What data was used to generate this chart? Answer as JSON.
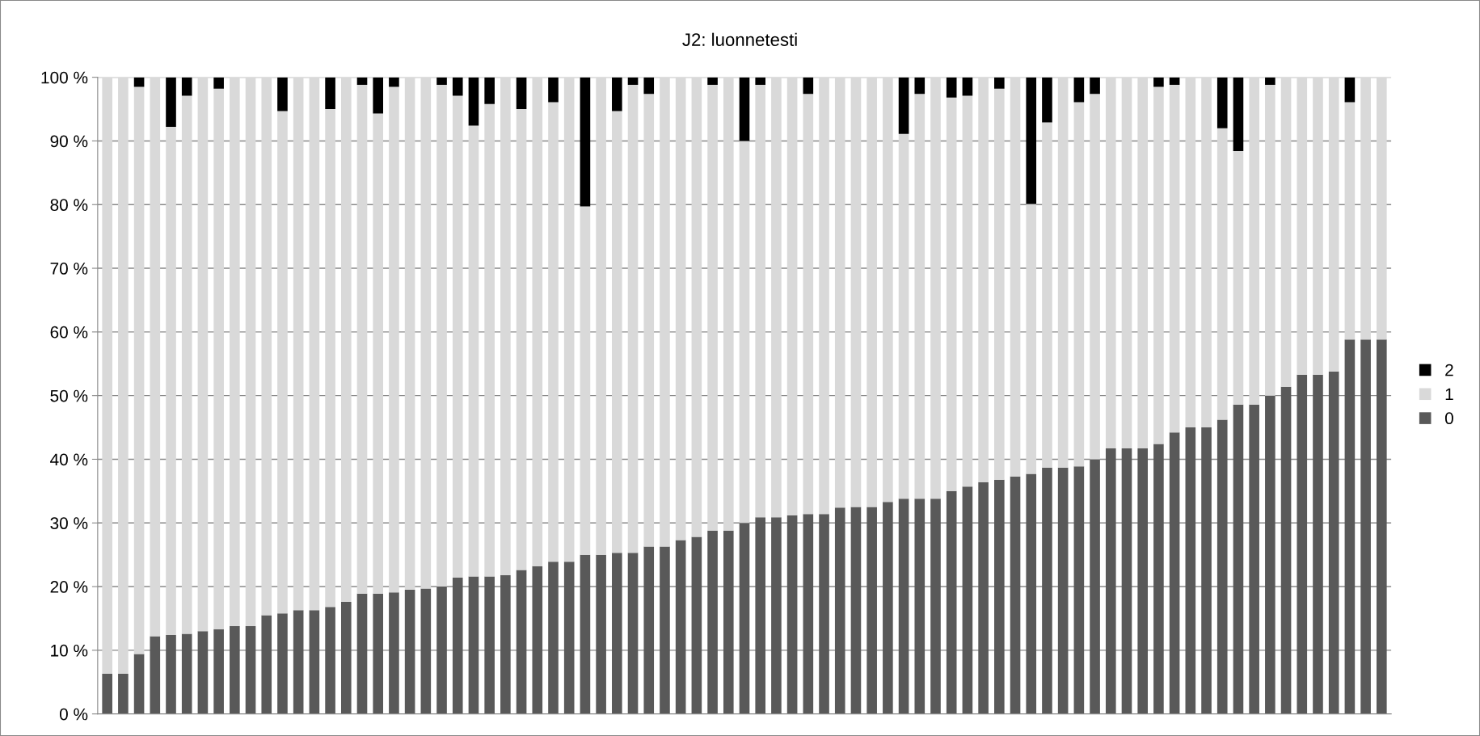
{
  "chart_data": {
    "type": "bar",
    "title": "J2: luonnetesti",
    "stacked": true,
    "categories": [
      null,
      null,
      null,
      null,
      null,
      null,
      null,
      null,
      null,
      null,
      null,
      null,
      null,
      null,
      null,
      null,
      null,
      null,
      null,
      null,
      null,
      null,
      null,
      null,
      null,
      null,
      null,
      null,
      null,
      null,
      null,
      null,
      null,
      null,
      null,
      null,
      null,
      null,
      null,
      null,
      null,
      null,
      null,
      null,
      null,
      null,
      null,
      null,
      null,
      null,
      null,
      null,
      null,
      null,
      null,
      null,
      null,
      null,
      null,
      null,
      null,
      null,
      null,
      null,
      null,
      null,
      null,
      null,
      null,
      null,
      null,
      null,
      null,
      null,
      null,
      null,
      null,
      null,
      null,
      null,
      null
    ],
    "series": [
      {
        "name": "0",
        "color": "#595959",
        "values": [
          6.3,
          6.3,
          9.4,
          12.2,
          12.4,
          12.6,
          13.0,
          13.3,
          13.8,
          13.8,
          15.5,
          15.8,
          16.3,
          16.3,
          16.8,
          17.6,
          18.9,
          18.9,
          19.1,
          19.5,
          19.7,
          20.0,
          21.4,
          21.6,
          21.6,
          21.8,
          22.6,
          23.2,
          23.9,
          23.9,
          25.0,
          25.0,
          25.3,
          25.3,
          26.3,
          26.3,
          27.3,
          27.8,
          28.8,
          28.8,
          30.0,
          30.9,
          30.9,
          31.2,
          31.4,
          31.4,
          32.4,
          32.5,
          32.5,
          33.3,
          33.8,
          33.8,
          33.8,
          35.0,
          35.7,
          36.4,
          36.8,
          37.3,
          37.7,
          38.7,
          38.7,
          38.9,
          40.0,
          41.7,
          41.7,
          41.7,
          42.4,
          44.2,
          45.0,
          45.0,
          46.2,
          48.6,
          48.6,
          50.0,
          51.4,
          53.3,
          53.3,
          53.8,
          58.8,
          58.8,
          58.8
        ]
      },
      {
        "name": "1",
        "color": "#d9d9d9",
        "values": [
          93.7,
          93.7,
          89.1,
          87.8,
          79.8,
          84.5,
          87.0,
          84.9,
          86.2,
          86.2,
          84.5,
          78.9,
          83.7,
          83.7,
          78.2,
          82.4,
          79.9,
          75.4,
          79.4,
          80.5,
          80.3,
          78.8,
          75.7,
          70.8,
          74.2,
          78.2,
          72.4,
          76.8,
          72.2,
          76.1,
          54.7,
          75.0,
          69.4,
          73.5,
          71.1,
          73.7,
          72.7,
          72.2,
          70.0,
          71.2,
          60.0,
          67.9,
          69.1,
          68.8,
          66.0,
          68.6,
          67.6,
          67.5,
          67.5,
          66.7,
          57.3,
          63.6,
          66.2,
          61.8,
          61.4,
          63.6,
          61.4,
          62.7,
          42.4,
          54.2,
          61.3,
          57.2,
          57.4,
          58.3,
          58.3,
          58.3,
          56.1,
          54.6,
          55.0,
          55.0,
          45.8,
          39.8,
          51.4,
          48.8,
          48.6,
          46.7,
          46.7,
          46.2,
          37.3,
          41.2,
          41.2
        ]
      },
      {
        "name": "2",
        "color": "#000000",
        "values": [
          0,
          0,
          1.5,
          0,
          7.8,
          2.9,
          0,
          1.8,
          0,
          0,
          0,
          5.3,
          0,
          0,
          5.0,
          0,
          1.2,
          5.7,
          1.5,
          0,
          0,
          1.2,
          2.9,
          7.6,
          4.2,
          0,
          5.0,
          0,
          3.9,
          0,
          20.3,
          0,
          5.3,
          1.2,
          2.6,
          0,
          0,
          0,
          1.2,
          0,
          10.0,
          1.2,
          0,
          0,
          2.6,
          0,
          0,
          0,
          0,
          0,
          8.9,
          2.6,
          0,
          3.2,
          2.9,
          0,
          1.8,
          0,
          19.9,
          7.1,
          0,
          3.9,
          2.6,
          0,
          0,
          0,
          1.5,
          1.2,
          0,
          0,
          8.0,
          11.6,
          0,
          1.2,
          0,
          0,
          0,
          0,
          3.9,
          0,
          0
        ]
      }
    ],
    "ylim": [
      0,
      100
    ],
    "yticks": [
      {
        "value": 0,
        "label": "0 %"
      },
      {
        "value": 10,
        "label": "10 %"
      },
      {
        "value": 20,
        "label": "20 %"
      },
      {
        "value": 30,
        "label": "30 %"
      },
      {
        "value": 40,
        "label": "40 %"
      },
      {
        "value": 50,
        "label": "50 %"
      },
      {
        "value": 60,
        "label": "60 %"
      },
      {
        "value": 70,
        "label": "70 %"
      },
      {
        "value": 80,
        "label": "80 %"
      },
      {
        "value": 90,
        "label": "90 %"
      },
      {
        "value": 100,
        "label": "100 %"
      }
    ],
    "grid": "y",
    "legend": "right",
    "tick_labels": "y"
  }
}
